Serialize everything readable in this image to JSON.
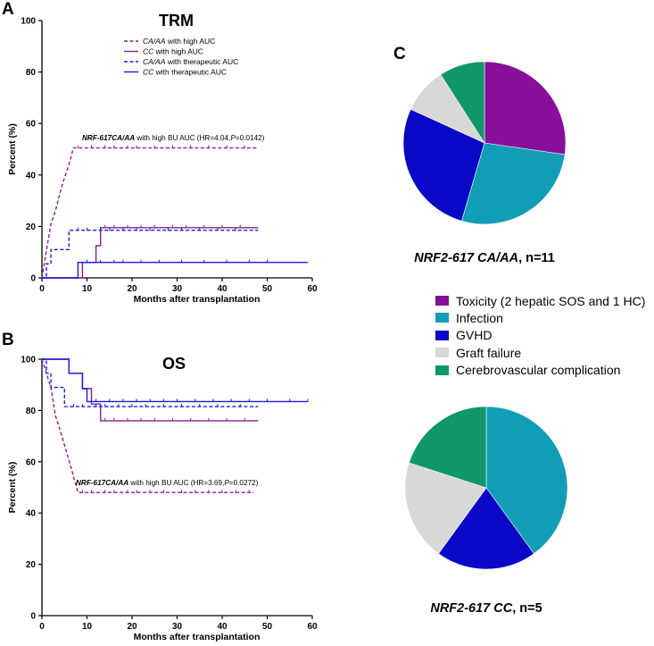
{
  "panel_labels": {
    "a": "A",
    "b": "B",
    "c": "C"
  },
  "chart_data": [
    {
      "type": "line",
      "id": "A",
      "title": "TRM",
      "xlabel": "Months after transplantation",
      "ylabel": "Percent (%)",
      "xlim": [
        0,
        60
      ],
      "ylim": [
        0,
        100
      ],
      "xticks": [
        0,
        10,
        20,
        30,
        40,
        50,
        60
      ],
      "yticks": [
        0,
        20,
        40,
        60,
        80,
        100
      ],
      "legend": [
        {
          "italic": "CA/AA",
          "text": " with high AUC",
          "color": "#8c1d8c",
          "dash": "dashed"
        },
        {
          "italic": "CC",
          "text": " with high AUC",
          "color": "#8c1d8c",
          "dash": "solid"
        },
        {
          "italic": "CA/AA",
          "text": " with therapeutic AUC",
          "color": "#1b1bd6",
          "dash": "dashed"
        },
        {
          "italic": "CC",
          "text": " with therapeutic AUC",
          "color": "#1b1bd6",
          "dash": "solid"
        }
      ],
      "annotation": {
        "italic": "NRF-617CA/AA",
        "text1": " with high BU AUC (HR=4.04,",
        "italic2": "P",
        "text2": "=0.0142)"
      },
      "series": [
        {
          "name": "CA/AA with high AUC",
          "color": "#8c1d8c",
          "dash": "dashed",
          "steps": [
            [
              0,
              0
            ],
            [
              1,
              10.5
            ],
            [
              2,
              21
            ],
            [
              3,
              26
            ],
            [
              4,
              33
            ],
            [
              5,
              39
            ],
            [
              6,
              44
            ],
            [
              7,
              50.5
            ],
            [
              48,
              50.5
            ]
          ],
          "censors": [
            8,
            11,
            14,
            16,
            19,
            21,
            25,
            29,
            33,
            37,
            41,
            45
          ]
        },
        {
          "name": "CC with high AUC",
          "color": "#8c1d8c",
          "dash": "solid",
          "steps": [
            [
              0,
              0
            ],
            [
              9,
              0
            ],
            [
              9,
              6
            ],
            [
              12,
              6
            ],
            [
              12,
              12.5
            ],
            [
              13,
              12.5
            ],
            [
              13,
              19.5
            ],
            [
              48,
              19.5
            ]
          ],
          "censors": [
            14,
            16,
            19,
            22,
            25,
            29,
            32,
            36,
            40,
            44
          ]
        },
        {
          "name": "CA/AA with therapeutic AUC",
          "color": "#1b1bd6",
          "dash": "dashed",
          "steps": [
            [
              0,
              0
            ],
            [
              1,
              0
            ],
            [
              1,
              5.5
            ],
            [
              2,
              5.5
            ],
            [
              2,
              11
            ],
            [
              6,
              11
            ],
            [
              6,
              18.5
            ],
            [
              48,
              18.5
            ]
          ],
          "censors": [
            8,
            10,
            13,
            15,
            18,
            21,
            24,
            28,
            31,
            35,
            39,
            43
          ]
        },
        {
          "name": "CC with therapeutic AUC",
          "color": "#1b1bd6",
          "dash": "solid",
          "steps": [
            [
              0,
              0
            ],
            [
              8,
              0
            ],
            [
              8,
              6
            ],
            [
              59,
              6
            ]
          ],
          "censors": [
            10,
            13,
            16,
            18,
            22,
            26,
            31,
            36,
            41,
            46,
            50
          ]
        }
      ]
    },
    {
      "type": "line",
      "id": "B",
      "title": "OS",
      "xlabel": "Months after transplantation",
      "ylabel": "Percent (%)",
      "xlim": [
        0,
        60
      ],
      "ylim": [
        0,
        100
      ],
      "xticks": [
        0,
        10,
        20,
        30,
        40,
        50,
        60
      ],
      "yticks": [
        0,
        20,
        40,
        60,
        80,
        100
      ],
      "annotation": {
        "italic": "NRF-617CA/AA",
        "text1": " with high BU AUC (HR=3.69,",
        "italic2": "P",
        "text2": "=0.0272)"
      },
      "series": [
        {
          "name": "CA/AA with high AUC",
          "color": "#8c1d8c",
          "dash": "dashed",
          "steps": [
            [
              0,
              100
            ],
            [
              1,
              94.5
            ],
            [
              2,
              89
            ],
            [
              2.5,
              83.5
            ],
            [
              3,
              78
            ],
            [
              4,
              72.5
            ],
            [
              5,
              66.5
            ],
            [
              6,
              60.5
            ],
            [
              7,
              54.5
            ],
            [
              8,
              48
            ],
            [
              47,
              48
            ]
          ],
          "censors": [
            9,
            11,
            14,
            16,
            19,
            21,
            24,
            27,
            31,
            34,
            37,
            40,
            43,
            46
          ]
        },
        {
          "name": "CC with high AUC",
          "color": "#8c1d8c",
          "dash": "solid",
          "steps": [
            [
              0,
              100
            ],
            [
              6,
              100
            ],
            [
              6,
              94.5
            ],
            [
              9,
              94.5
            ],
            [
              9,
              88.5
            ],
            [
              11,
              88.5
            ],
            [
              11,
              82.5
            ],
            [
              13,
              82.5
            ],
            [
              13,
              76
            ],
            [
              48,
              76
            ]
          ],
          "censors": [
            14,
            16,
            19,
            22,
            25,
            29,
            33,
            37,
            41,
            45
          ]
        },
        {
          "name": "CA/AA with therapeutic AUC",
          "color": "#1b1bd6",
          "dash": "dashed",
          "steps": [
            [
              0,
              100
            ],
            [
              1,
              100
            ],
            [
              1,
              94.5
            ],
            [
              2,
              94.5
            ],
            [
              2,
              89
            ],
            [
              5,
              89
            ],
            [
              5,
              81.5
            ],
            [
              48,
              81.5
            ]
          ],
          "censors": [
            7,
            9,
            12,
            14,
            17,
            20,
            23,
            27,
            31,
            35,
            39,
            44
          ]
        },
        {
          "name": "CC with therapeutic AUC",
          "color": "#1b1bd6",
          "dash": "solid",
          "steps": [
            [
              0,
              100
            ],
            [
              6,
              100
            ],
            [
              6,
              94.5
            ],
            [
              9,
              94.5
            ],
            [
              9,
              88.5
            ],
            [
              10,
              88.5
            ],
            [
              10,
              83.5
            ],
            [
              59,
              83.5
            ]
          ],
          "censors": [
            12,
            15,
            18,
            21,
            24,
            27,
            30,
            34,
            38,
            42,
            46,
            50,
            55,
            59
          ]
        }
      ]
    },
    {
      "type": "pie",
      "id": "C1",
      "caption_italic": "NRF2-617 CA/AA",
      "caption_text": ", n=11",
      "slices": [
        {
          "label": "Toxicity (2 hepatic SOS and 1 HC)",
          "value": 3,
          "color": "#870f9b"
        },
        {
          "label": "Infection",
          "value": 3,
          "color": "#109eb6"
        },
        {
          "label": "GVHD",
          "value": 3,
          "color": "#0a08c7"
        },
        {
          "label": "Graft failure",
          "value": 1,
          "color": "#d8d8d8"
        },
        {
          "label": "Cerebrovascular complication",
          "value": 1,
          "color": "#0f966a"
        }
      ]
    },
    {
      "type": "pie",
      "id": "C2",
      "caption_italic": "NRF2-617 CC",
      "caption_text": ", n=5",
      "slices": [
        {
          "label": "Infection",
          "value": 2,
          "color": "#109eb6"
        },
        {
          "label": "GVHD",
          "value": 1,
          "color": "#0a08c7"
        },
        {
          "label": "Graft failure",
          "value": 1,
          "color": "#d8d8d8"
        },
        {
          "label": "Cerebrovascular complication",
          "value": 1,
          "color": "#0f966a"
        }
      ]
    }
  ],
  "pie_legend": [
    {
      "label": "Toxicity (2 hepatic SOS and 1 HC)",
      "color": "#870f9b"
    },
    {
      "label": "Infection",
      "color": "#109eb6"
    },
    {
      "label": "GVHD",
      "color": "#0a08c7"
    },
    {
      "label": "Graft failure",
      "color": "#d8d8d8"
    },
    {
      "label": "Cerebrovascular complication",
      "color": "#0f966a"
    }
  ]
}
